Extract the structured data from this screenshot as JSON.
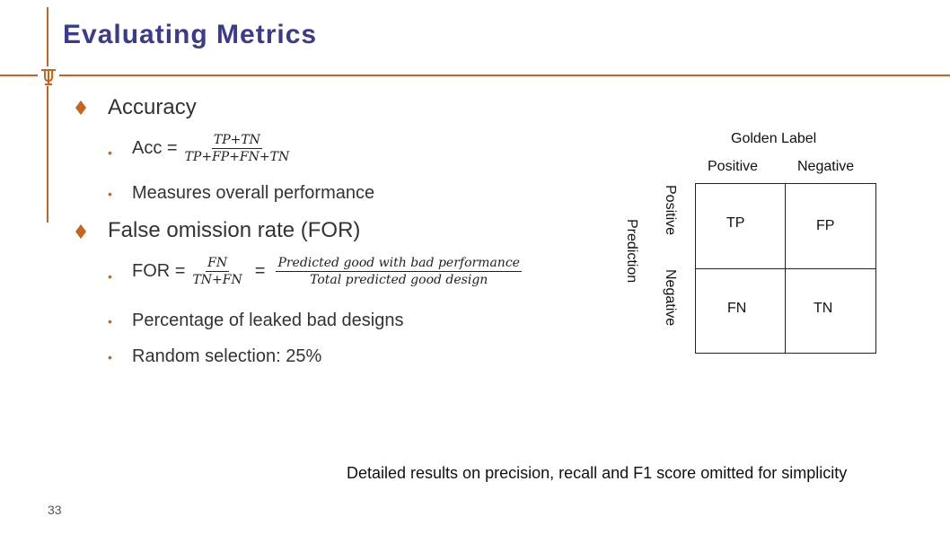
{
  "slide": {
    "title": "Evaluating Metrics",
    "page_number": "33",
    "accent_color": "#c8641e",
    "title_color": "#3b3b8e",
    "logo_icon": "longhorn-u-icon"
  },
  "content": {
    "accuracy": {
      "heading": "Accuracy",
      "formula_prefix": "Acc =",
      "formula_num": "TP+TN",
      "formula_den": "TP+FP+FN+TN",
      "point": "Measures overall performance"
    },
    "for": {
      "heading": "False omission rate (FOR)",
      "formula_prefix": "FOR =",
      "formula_num1": "FN",
      "formula_den1": "TN+FN",
      "equals": "=",
      "formula_num2": "Predicted good with bad performance",
      "formula_den2": "Total predicted good design",
      "point1": "Percentage of leaked bad designs",
      "point2": "Random selection: 25%"
    }
  },
  "confusion_matrix": {
    "column_title": "Golden Label",
    "col_positive": "Positive",
    "col_negative": "Negative",
    "row_title": "Prediction",
    "row_positive": "Positive",
    "row_negative": "Negative",
    "tp": "TP",
    "fp": "FP",
    "fn": "FN",
    "tn": "TN"
  },
  "footer_note": "Detailed results on precision, recall and F1 score omitted for simplicity"
}
